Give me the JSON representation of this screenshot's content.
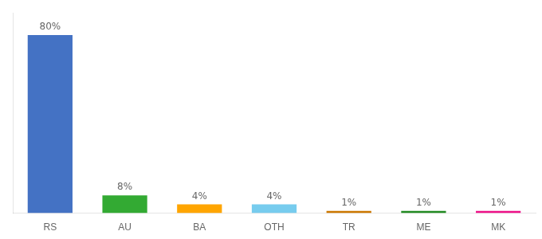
{
  "chart_data": {
    "type": "bar",
    "categories": [
      "RS",
      "AU",
      "BA",
      "OTH",
      "TR",
      "ME",
      "MK"
    ],
    "values": [
      80,
      8,
      4,
      4,
      1,
      1,
      1
    ],
    "value_labels": [
      "80%",
      "8%",
      "4%",
      "4%",
      "1%",
      "1%",
      "1%"
    ],
    "colors": [
      "#4472C4",
      "#33AA33",
      "#FFA500",
      "#77CCEE",
      "#CC7700",
      "#228B22",
      "#EE1188"
    ],
    "ylim": [
      0,
      90
    ],
    "grid": false,
    "data_labels": true,
    "tick_labels": "x"
  }
}
